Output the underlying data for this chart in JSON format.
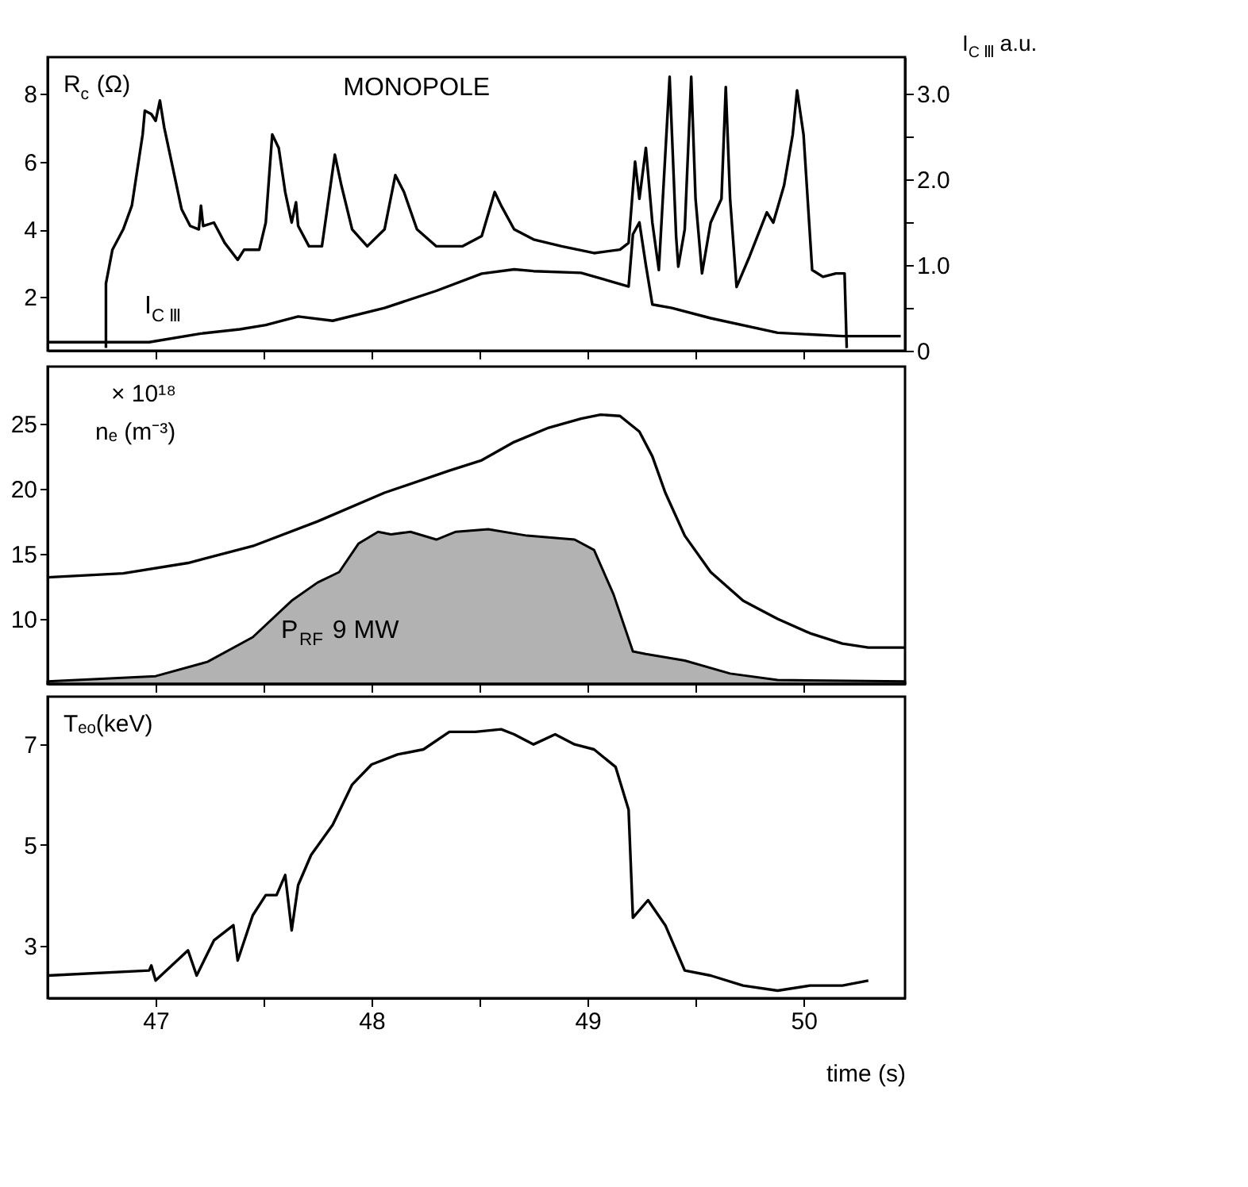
{
  "chart_data": [
    {
      "type": "line",
      "title": "MONOPOLE",
      "ylabel": "R$_{c}$(Ω)",
      "y2label": "I$_{C Ⅲ}$ a.u.",
      "xlim": [
        46.5,
        50.47
      ],
      "xticks": [
        47,
        {
          "value": 47.5,
          "label": null
        },
        48,
        {
          "value": 48.5,
          "label": null
        },
        49,
        {
          "value": 49.5,
          "label": null
        },
        50
      ],
      "ylim": [
        0.42,
        9.08
      ],
      "yticks": [
        2,
        4,
        6,
        8
      ],
      "y2lim": [
        0,
        3.43
      ],
      "y2ticks": [
        {
          "value": 0,
          "label": "0"
        },
        {
          "value": 0.5,
          "label": null
        },
        {
          "value": 1,
          "label": "1.0"
        },
        {
          "value": 1.5,
          "label": null
        },
        {
          "value": 2,
          "label": "2.0"
        },
        {
          "value": 2.5,
          "label": null
        },
        {
          "value": 3,
          "label": "3.0"
        }
      ],
      "tick_labels": "y",
      "grid": false,
      "series": [
        {
          "color": "#000000",
          "x": [
            46.77,
            46.77,
            46.8,
            46.85,
            46.89,
            46.94,
            46.95,
            46.98,
            47.0,
            47.02,
            47.04,
            47.09,
            47.12,
            47.16,
            47.2,
            47.21,
            47.22,
            47.27,
            47.32,
            47.38,
            47.41,
            47.48,
            47.51,
            47.54,
            47.57,
            47.6,
            47.63,
            47.65,
            47.66,
            47.71,
            47.77,
            47.81,
            47.83,
            47.86,
            47.91,
            47.98,
            48.06,
            48.11,
            48.15,
            48.21,
            48.3,
            48.42,
            48.51,
            48.57,
            48.6,
            48.66,
            48.75,
            48.88,
            49.03,
            49.15,
            49.19,
            49.22,
            49.24,
            49.27,
            49.3,
            49.33,
            49.38,
            49.41,
            49.42,
            49.45,
            49.48,
            49.5,
            49.53,
            49.57,
            49.62,
            49.64,
            49.66,
            49.69,
            49.75,
            49.83,
            49.86,
            49.91,
            49.95,
            49.97,
            50.0,
            50.04,
            50.09,
            50.15,
            50.19,
            50.2
          ],
          "values": [
            0.5,
            2.4,
            3.4,
            4.0,
            4.7,
            6.8,
            7.5,
            7.4,
            7.2,
            7.8,
            7.0,
            5.5,
            4.6,
            4.1,
            4.0,
            4.7,
            4.1,
            4.2,
            3.6,
            3.1,
            3.4,
            3.4,
            4.2,
            6.8,
            6.4,
            5.1,
            4.2,
            4.8,
            4.1,
            3.5,
            3.5,
            5.3,
            6.2,
            5.3,
            4.0,
            3.5,
            4.0,
            5.6,
            5.1,
            4.0,
            3.5,
            3.5,
            3.8,
            5.1,
            4.7,
            4.0,
            3.7,
            3.5,
            3.3,
            3.4,
            3.6,
            6.0,
            4.9,
            6.4,
            4.2,
            2.8,
            8.5,
            3.8,
            2.9,
            4.0,
            8.5,
            4.9,
            2.7,
            4.2,
            4.9,
            8.2,
            4.9,
            2.3,
            3.2,
            4.5,
            4.2,
            5.3,
            6.8,
            8.1,
            6.8,
            2.8,
            2.6,
            2.7,
            2.7,
            0.5
          ]
        },
        {
          "name": "I$_{C Ⅲ}$",
          "color": "#000000",
          "axis": "y2",
          "x": [
            46.5,
            46.97,
            47.21,
            47.39,
            47.51,
            47.66,
            47.82,
            48.06,
            48.3,
            48.51,
            48.66,
            48.75,
            48.97,
            49.19,
            49.21,
            49.24,
            49.27,
            49.3,
            49.39,
            49.57,
            49.88,
            50.18,
            50.45
          ],
          "values": [
            0.1,
            0.1,
            0.2,
            0.25,
            0.3,
            0.4,
            0.35,
            0.5,
            0.7,
            0.9,
            0.95,
            0.93,
            0.91,
            0.75,
            1.36,
            1.5,
            1.0,
            0.54,
            0.5,
            0.38,
            0.21,
            0.17,
            0.17
          ]
        }
      ]
    },
    {
      "type": "line",
      "ylabel": "nₑ (m⁻³)",
      "annotations": [
        "× 10¹⁸"
      ],
      "xlim": [
        46.5,
        50.47
      ],
      "xticks": [
        47,
        {
          "value": 47.5,
          "label": null
        },
        48,
        {
          "value": 48.5,
          "label": null
        },
        49,
        {
          "value": 49.5,
          "label": null
        },
        50
      ],
      "ylim": [
        5,
        29.4
      ],
      "yticks": [
        10,
        15,
        20,
        25
      ],
      "tick_labels": "y",
      "grid": false,
      "series": [
        {
          "color": "#000000",
          "x": [
            46.5,
            46.85,
            47.15,
            47.45,
            47.75,
            48.06,
            48.36,
            48.51,
            48.66,
            48.82,
            48.97,
            49.06,
            49.15,
            49.24,
            49.3,
            49.36,
            49.45,
            49.57,
            49.72,
            49.88,
            50.03,
            50.18,
            50.3,
            50.47
          ],
          "values": [
            13.2,
            13.5,
            14.3,
            15.6,
            17.5,
            19.7,
            21.4,
            22.2,
            23.6,
            24.7,
            25.4,
            25.7,
            25.6,
            24.4,
            22.5,
            19.7,
            16.4,
            13.6,
            11.4,
            10.0,
            8.9,
            8.1,
            7.8,
            7.8
          ]
        },
        {
          "name": "P$_{RF}$ 9 MW",
          "type": "area",
          "color": "#000000",
          "x": [
            46.5,
            47.0,
            47.24,
            47.45,
            47.63,
            47.75,
            47.85,
            47.94,
            48.03,
            48.09,
            48.18,
            48.3,
            48.39,
            48.54,
            48.72,
            48.94,
            49.03,
            49.12,
            49.21,
            49.27,
            49.45,
            49.66,
            49.88,
            50.47
          ],
          "values": [
            5.2,
            5.6,
            6.7,
            8.6,
            11.4,
            12.8,
            13.6,
            15.8,
            16.7,
            16.5,
            16.7,
            16.1,
            16.7,
            16.9,
            16.4,
            16.1,
            15.3,
            11.9,
            7.5,
            7.3,
            6.8,
            5.8,
            5.3,
            5.2
          ]
        }
      ]
    },
    {
      "type": "line",
      "ylabel": "Tₑₒ(keV)",
      "xlabel": "time (s)",
      "xlim": [
        46.5,
        50.47
      ],
      "xticks": [
        47,
        {
          "value": 47.5,
          "label": null
        },
        48,
        {
          "value": 48.5,
          "label": null
        },
        49,
        {
          "value": 49.5,
          "label": null
        },
        50
      ],
      "ylim": [
        1.95,
        7.95
      ],
      "yticks": [
        3,
        5,
        7
      ],
      "grid": false,
      "series": [
        {
          "color": "#000000",
          "x": [
            46.5,
            46.97,
            46.98,
            47.0,
            47.15,
            47.19,
            47.27,
            47.36,
            47.38,
            47.45,
            47.51,
            47.56,
            47.6,
            47.63,
            47.66,
            47.72,
            47.82,
            47.91,
            48.0,
            48.12,
            48.24,
            48.36,
            48.48,
            48.6,
            48.66,
            48.75,
            48.85,
            48.94,
            49.03,
            49.13,
            49.19,
            49.21,
            49.28,
            49.36,
            49.45,
            49.57,
            49.72,
            49.88,
            50.03,
            50.18,
            50.3
          ],
          "values": [
            2.4,
            2.5,
            2.6,
            2.3,
            2.9,
            2.4,
            3.1,
            3.4,
            2.7,
            3.6,
            4.0,
            4.0,
            4.4,
            3.3,
            4.2,
            4.8,
            5.4,
            6.2,
            6.6,
            6.8,
            6.9,
            7.25,
            7.25,
            7.3,
            7.2,
            7.0,
            7.2,
            7.0,
            6.9,
            6.55,
            5.7,
            3.55,
            3.9,
            3.4,
            2.5,
            2.4,
            2.2,
            2.1,
            2.2,
            2.2,
            2.3
          ]
        }
      ]
    }
  ]
}
